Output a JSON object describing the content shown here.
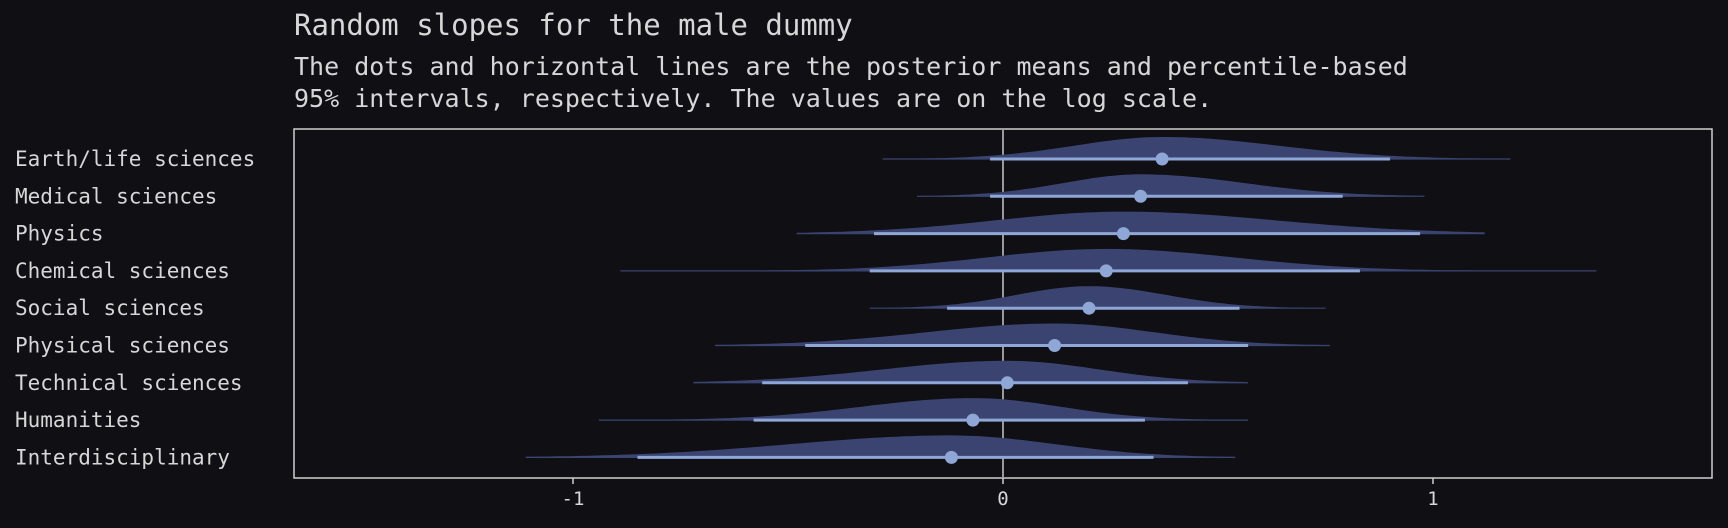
{
  "chart_data": {
    "type": "ridgeline",
    "title": "Random slopes for the male dummy",
    "subtitle": [
      "The dots and horizontal lines are the posterior means and percentile-based",
      "95% intervals, respectively. The values are on the log scale."
    ],
    "xlabel": "",
    "ylabel": "",
    "xlim": [
      -1.65,
      1.65
    ],
    "xticks": [
      -1,
      0,
      1
    ],
    "xtick_labels": [
      "-1",
      "0",
      "1"
    ],
    "reference_line_x": 0,
    "grid": false,
    "categories": [
      "Earth/life sciences",
      "Medical sciences",
      "Physics",
      "Chemical sciences",
      "Social sciences",
      "Physical sciences",
      "Technical sciences",
      "Humanities",
      "Interdisciplinary"
    ],
    "series": [
      {
        "category": "Earth/life sciences",
        "mean": 0.37,
        "lower": -0.03,
        "upper": 0.9,
        "min": -0.28,
        "max": 1.18
      },
      {
        "category": "Medical sciences",
        "mean": 0.32,
        "lower": -0.03,
        "upper": 0.79,
        "min": -0.2,
        "max": 0.98
      },
      {
        "category": "Physics",
        "mean": 0.28,
        "lower": -0.3,
        "upper": 0.97,
        "min": -0.48,
        "max": 1.12
      },
      {
        "category": "Chemical sciences",
        "mean": 0.24,
        "lower": -0.31,
        "upper": 0.83,
        "min": -0.89,
        "max": 1.38
      },
      {
        "category": "Social sciences",
        "mean": 0.2,
        "lower": -0.13,
        "upper": 0.55,
        "min": -0.31,
        "max": 0.75
      },
      {
        "category": "Physical sciences",
        "mean": 0.12,
        "lower": -0.46,
        "upper": 0.57,
        "min": -0.67,
        "max": 0.76
      },
      {
        "category": "Technical sciences",
        "mean": 0.01,
        "lower": -0.56,
        "upper": 0.43,
        "min": -0.72,
        "max": 0.57
      },
      {
        "category": "Humanities",
        "mean": -0.07,
        "lower": -0.58,
        "upper": 0.33,
        "min": -0.94,
        "max": 0.57
      },
      {
        "category": "Interdisciplinary",
        "mean": -0.12,
        "lower": -0.85,
        "upper": 0.35,
        "min": -1.11,
        "max": 0.54
      }
    ],
    "colors": {
      "background": "#0f0f14",
      "text": "#d7d7d7",
      "density_fill": "#3b4470",
      "interval_line": "#8fa7d6",
      "mean_point": "#8fa7d6",
      "frame": "#cfcfcf",
      "zero_line": "#9a9a9a"
    }
  }
}
